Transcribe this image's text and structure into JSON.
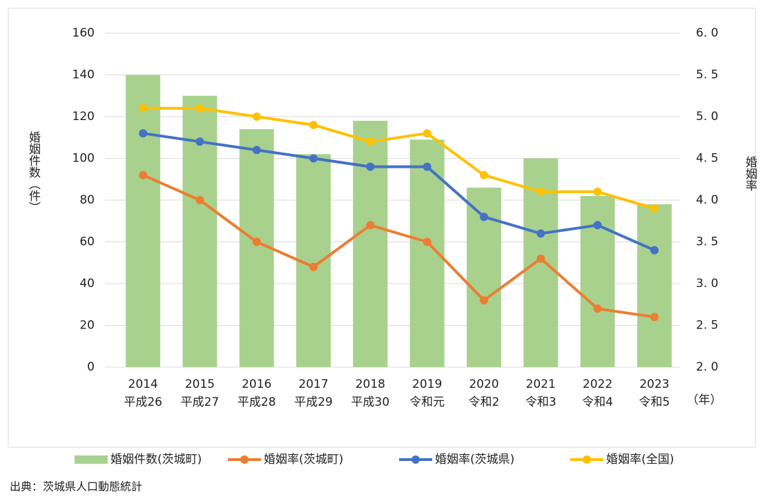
{
  "chart_data": {
    "type": "bar_line",
    "y_label": "婚姻件数（件）",
    "y2_label": "婚姻率",
    "x_label": "（年）",
    "source": "出典：茨城県人口動態統計",
    "categories": [
      [
        "2014",
        "平成26"
      ],
      [
        "2015",
        "平成27"
      ],
      [
        "2016",
        "平成28"
      ],
      [
        "2017",
        "平成29"
      ],
      [
        "2018",
        "平成30"
      ],
      [
        "2019",
        "令和元"
      ],
      [
        "2020",
        "令和2"
      ],
      [
        "2021",
        "令和3"
      ],
      [
        "2022",
        "令和4"
      ],
      [
        "2023",
        "令和5"
      ]
    ],
    "series": [
      {
        "name": "婚姻件数(茨城町)",
        "type": "bar",
        "color": "#a9d18e",
        "values": [
          140,
          130,
          114,
          102,
          118,
          109,
          86,
          100,
          82,
          78
        ]
      },
      {
        "name": "婚姻率(茨城町)",
        "type": "line",
        "axis": "y2",
        "color": "#ed7d31",
        "values": [
          4.3,
          4.0,
          3.5,
          3.2,
          3.7,
          3.5,
          2.8,
          3.3,
          2.7,
          2.6
        ]
      },
      {
        "name": "婚姻率(茨城県)",
        "type": "line",
        "axis": "y2",
        "color": "#4472c4",
        "values": [
          4.8,
          4.7,
          4.6,
          4.5,
          4.4,
          4.4,
          3.8,
          3.6,
          3.7,
          3.4
        ]
      },
      {
        "name": "婚姻率(全国)",
        "type": "line",
        "axis": "y2",
        "color": "#ffc000",
        "values": [
          5.1,
          5.1,
          5.0,
          4.9,
          4.7,
          4.8,
          4.3,
          4.1,
          4.1,
          3.9
        ]
      }
    ],
    "ylim": [
      0,
      160
    ],
    "yticks": [
      0,
      20,
      40,
      60,
      80,
      100,
      120,
      140,
      160
    ],
    "y2lim": [
      2.0,
      6.0
    ],
    "y2ticks": [
      {
        "value": 2.0,
        "label": "2. 0"
      },
      {
        "value": 2.5,
        "label": "2. 5"
      },
      {
        "value": 3.0,
        "label": "3. 0"
      },
      {
        "value": 3.5,
        "label": "3. 5"
      },
      {
        "value": 4.0,
        "label": "4. 0"
      },
      {
        "value": 4.5,
        "label": "4. 5"
      },
      {
        "value": 5.0,
        "label": "5. 0"
      },
      {
        "value": 5.5,
        "label": "5. 5"
      },
      {
        "value": 6.0,
        "label": "6. 0"
      }
    ],
    "grid": true
  }
}
